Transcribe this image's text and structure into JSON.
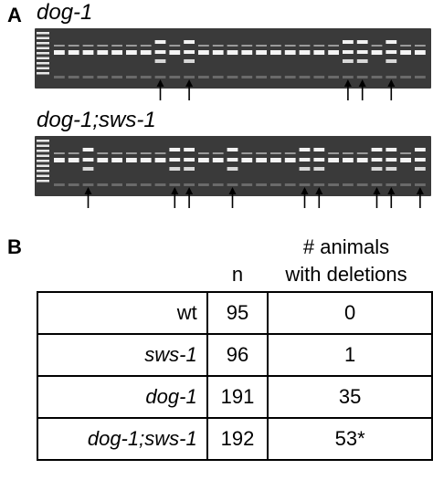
{
  "panel_a": {
    "label": "A",
    "gels": [
      {
        "title": "dog-1",
        "lanes": 26,
        "arrow_lanes": [
          8,
          10,
          21,
          22,
          24
        ]
      },
      {
        "title": "dog-1;sws-1",
        "lanes": 26,
        "arrow_lanes": [
          3,
          9,
          10,
          13,
          18,
          19,
          23,
          24,
          26
        ]
      }
    ]
  },
  "panel_b": {
    "label": "B",
    "header": {
      "n": "n",
      "deletions_line1": "# animals",
      "deletions_line2": "with deletions"
    },
    "rows": [
      {
        "genotype": "wt",
        "italic": false,
        "n": "95",
        "deletions": "0"
      },
      {
        "genotype": "sws-1",
        "italic": true,
        "n": "96",
        "deletions": "1"
      },
      {
        "genotype": "dog-1",
        "italic": true,
        "n": "191",
        "deletions": "35"
      },
      {
        "genotype": "dog-1;sws-1",
        "italic": true,
        "n": "192",
        "deletions": "53*"
      }
    ]
  }
}
